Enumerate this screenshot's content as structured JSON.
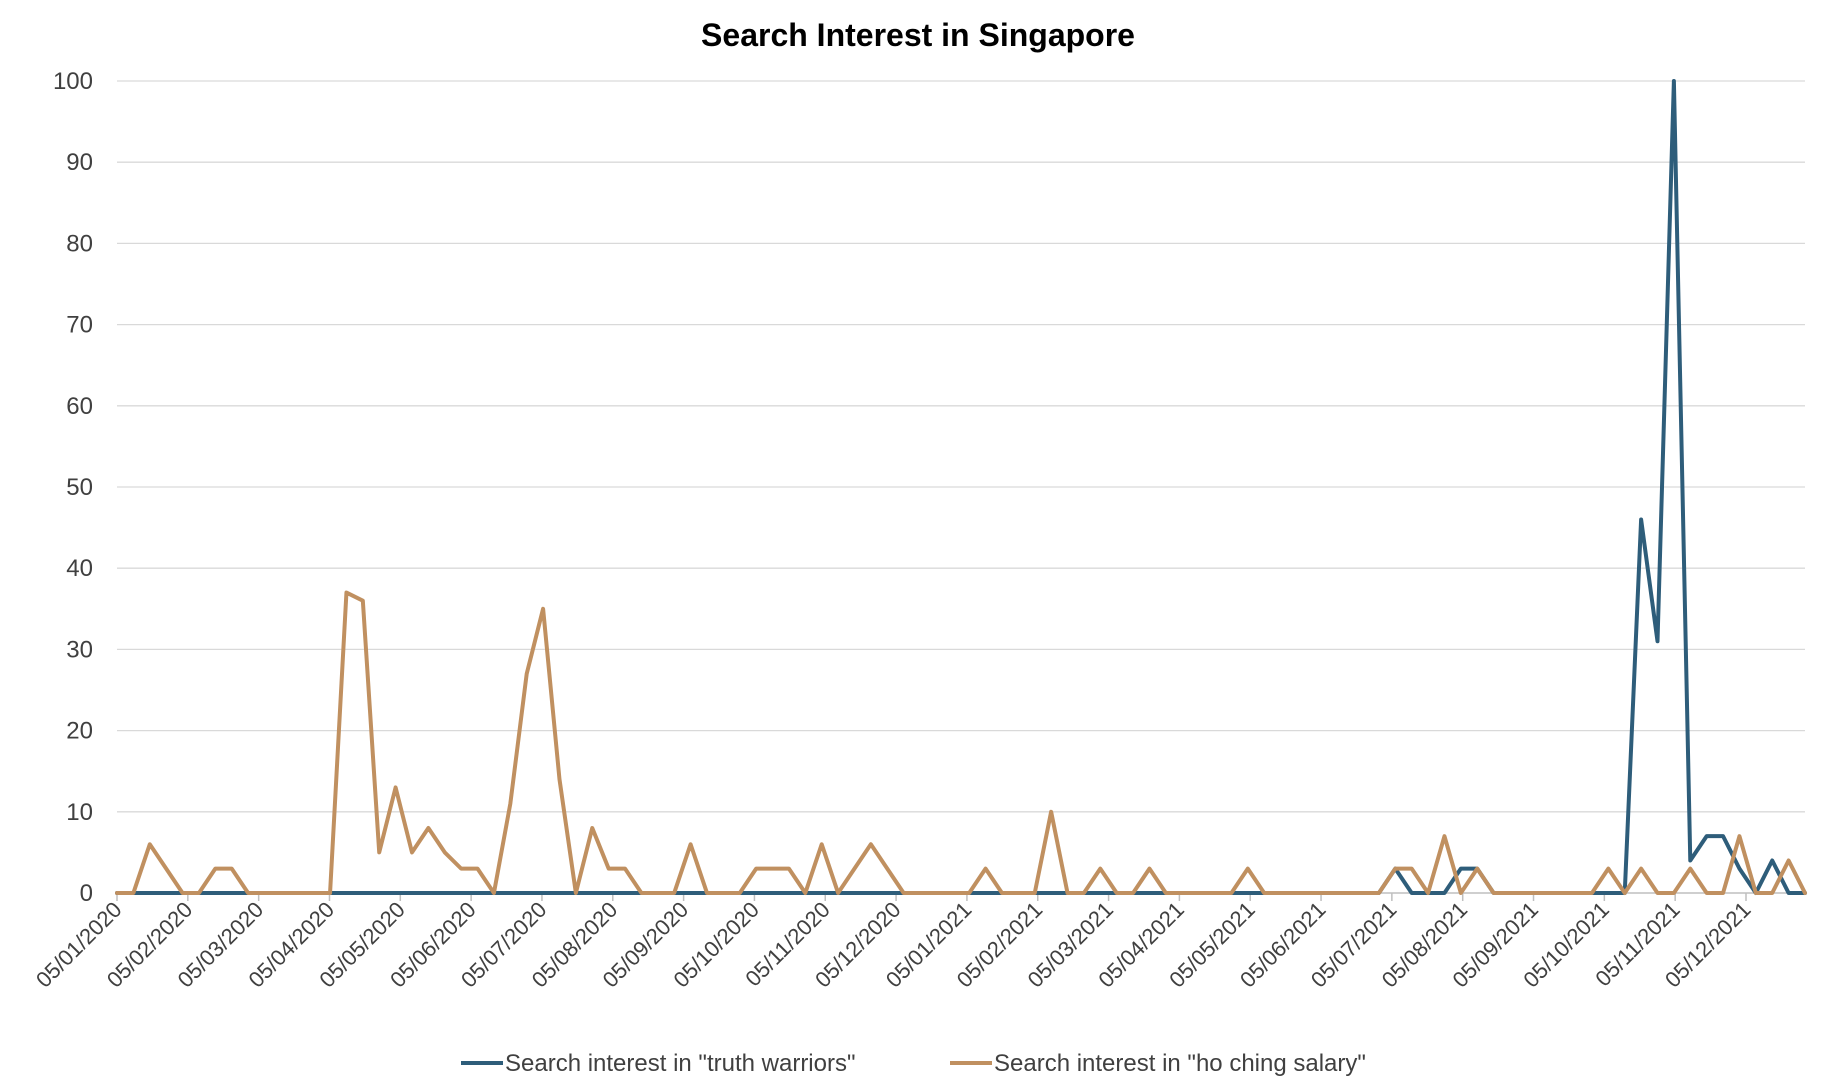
{
  "chart_data": {
    "type": "line",
    "title": "Search Interest in Singapore",
    "xlabel": "",
    "ylabel": "",
    "ylim": [
      0,
      100
    ],
    "yticks": [
      0,
      10,
      20,
      30,
      40,
      50,
      60,
      70,
      80,
      90,
      100
    ],
    "grid": true,
    "legend_position": "bottom",
    "x_tick_labels": [
      "05/01/2020",
      "05/02/2020",
      "05/03/2020",
      "05/04/2020",
      "05/05/2020",
      "05/06/2020",
      "05/07/2020",
      "05/08/2020",
      "05/09/2020",
      "05/10/2020",
      "05/11/2020",
      "05/12/2020",
      "05/01/2021",
      "05/02/2021",
      "05/03/2021",
      "05/04/2021",
      "05/05/2021",
      "05/06/2021",
      "05/07/2021",
      "05/08/2021",
      "05/09/2021",
      "05/10/2021",
      "05/11/2021",
      "05/12/2021"
    ],
    "x": [
      "05/01/2020",
      "12/01/2020",
      "19/01/2020",
      "26/01/2020",
      "02/02/2020",
      "09/02/2020",
      "16/02/2020",
      "23/02/2020",
      "01/03/2020",
      "08/03/2020",
      "15/03/2020",
      "22/03/2020",
      "29/03/2020",
      "05/04/2020",
      "12/04/2020",
      "19/04/2020",
      "26/04/2020",
      "03/05/2020",
      "10/05/2020",
      "17/05/2020",
      "24/05/2020",
      "31/05/2020",
      "07/06/2020",
      "14/06/2020",
      "21/06/2020",
      "28/06/2020",
      "05/07/2020",
      "12/07/2020",
      "19/07/2020",
      "26/07/2020",
      "02/08/2020",
      "09/08/2020",
      "16/08/2020",
      "23/08/2020",
      "30/08/2020",
      "06/09/2020",
      "13/09/2020",
      "20/09/2020",
      "27/09/2020",
      "04/10/2020",
      "11/10/2020",
      "18/10/2020",
      "25/10/2020",
      "01/11/2020",
      "08/11/2020",
      "15/11/2020",
      "22/11/2020",
      "29/11/2020",
      "06/12/2020",
      "13/12/2020",
      "20/12/2020",
      "27/12/2020",
      "03/01/2021",
      "10/01/2021",
      "17/01/2021",
      "24/01/2021",
      "31/01/2021",
      "07/02/2021",
      "14/02/2021",
      "21/02/2021",
      "28/02/2021",
      "07/03/2021",
      "14/03/2021",
      "21/03/2021",
      "28/03/2021",
      "04/04/2021",
      "11/04/2021",
      "18/04/2021",
      "25/04/2021",
      "02/05/2021",
      "09/05/2021",
      "16/05/2021",
      "23/05/2021",
      "30/05/2021",
      "06/06/2021",
      "13/06/2021",
      "20/06/2021",
      "27/06/2021",
      "04/07/2021",
      "11/07/2021",
      "18/07/2021",
      "25/07/2021",
      "01/08/2021",
      "08/08/2021",
      "15/08/2021",
      "22/08/2021",
      "29/08/2021",
      "05/09/2021",
      "12/09/2021",
      "19/09/2021",
      "26/09/2021",
      "03/10/2021",
      "10/10/2021",
      "17/10/2021",
      "24/10/2021",
      "31/10/2021",
      "07/11/2021",
      "14/11/2021",
      "21/11/2021",
      "28/11/2021",
      "05/12/2021",
      "12/12/2021",
      "19/12/2021",
      "26/12/2021"
    ],
    "series": [
      {
        "name": "Search interest in \"truth warriors\"",
        "color": "#2e5d7a",
        "values": [
          0,
          0,
          0,
          0,
          0,
          0,
          0,
          0,
          0,
          0,
          0,
          0,
          0,
          0,
          0,
          0,
          0,
          0,
          0,
          0,
          0,
          0,
          0,
          0,
          0,
          0,
          0,
          0,
          0,
          0,
          0,
          0,
          0,
          0,
          0,
          0,
          0,
          0,
          0,
          0,
          0,
          0,
          0,
          0,
          0,
          0,
          0,
          0,
          0,
          0,
          0,
          0,
          0,
          0,
          0,
          0,
          0,
          0,
          0,
          0,
          0,
          0,
          0,
          0,
          0,
          0,
          0,
          0,
          0,
          0,
          0,
          0,
          0,
          0,
          0,
          0,
          0,
          0,
          3,
          0,
          0,
          0,
          3,
          3,
          0,
          0,
          0,
          0,
          0,
          0,
          0,
          0,
          0,
          46,
          31,
          100,
          4,
          7,
          7,
          3,
          0,
          4,
          0,
          0
        ]
      },
      {
        "name": "Search interest in \"ho ching salary\"",
        "color": "#c09060",
        "values": [
          0,
          0,
          6,
          3,
          0,
          0,
          3,
          3,
          0,
          0,
          0,
          0,
          0,
          0,
          37,
          36,
          5,
          13,
          5,
          8,
          5,
          3,
          3,
          0,
          11,
          27,
          35,
          14,
          0,
          8,
          3,
          3,
          0,
          0,
          0,
          6,
          0,
          0,
          0,
          3,
          3,
          3,
          0,
          6,
          0,
          3,
          6,
          3,
          0,
          0,
          0,
          0,
          0,
          3,
          0,
          0,
          0,
          10,
          0,
          0,
          3,
          0,
          0,
          3,
          0,
          0,
          0,
          0,
          0,
          3,
          0,
          0,
          0,
          0,
          0,
          0,
          0,
          0,
          3,
          3,
          0,
          7,
          0,
          3,
          0,
          0,
          0,
          0,
          0,
          0,
          0,
          3,
          0,
          3,
          0,
          0,
          3,
          0,
          0,
          7,
          0,
          0,
          4,
          0
        ]
      }
    ]
  }
}
